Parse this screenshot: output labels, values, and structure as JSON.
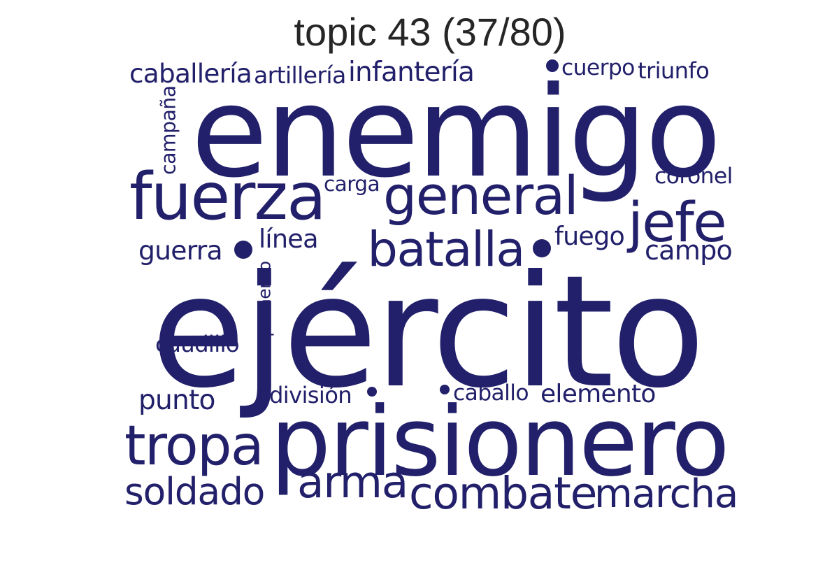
{
  "title": "topic 43 (37/80)",
  "word_color": "#22206a",
  "title_color": "#262626",
  "words": [
    {
      "text": "ejército"
    },
    {
      "text": "enemigo"
    },
    {
      "text": "prisionero"
    },
    {
      "text": "fuerza"
    },
    {
      "text": "general"
    },
    {
      "text": "jefe"
    },
    {
      "text": "batalla"
    },
    {
      "text": "tropa"
    },
    {
      "text": "combate"
    },
    {
      "text": "marcha"
    },
    {
      "text": "arma"
    },
    {
      "text": "soldado"
    },
    {
      "text": "caballería"
    },
    {
      "text": "infantería"
    },
    {
      "text": "artillería"
    },
    {
      "text": "cuerpo"
    },
    {
      "text": "triunfo"
    },
    {
      "text": "campaña"
    },
    {
      "text": "coronel"
    },
    {
      "text": "carga"
    },
    {
      "text": "guerra"
    },
    {
      "text": "línea"
    },
    {
      "text": "fuego"
    },
    {
      "text": "campo"
    },
    {
      "text": "campamento"
    },
    {
      "text": "caudillo"
    },
    {
      "text": "punto"
    },
    {
      "text": "división"
    },
    {
      "text": "caballo"
    },
    {
      "text": "elemento"
    }
  ]
}
